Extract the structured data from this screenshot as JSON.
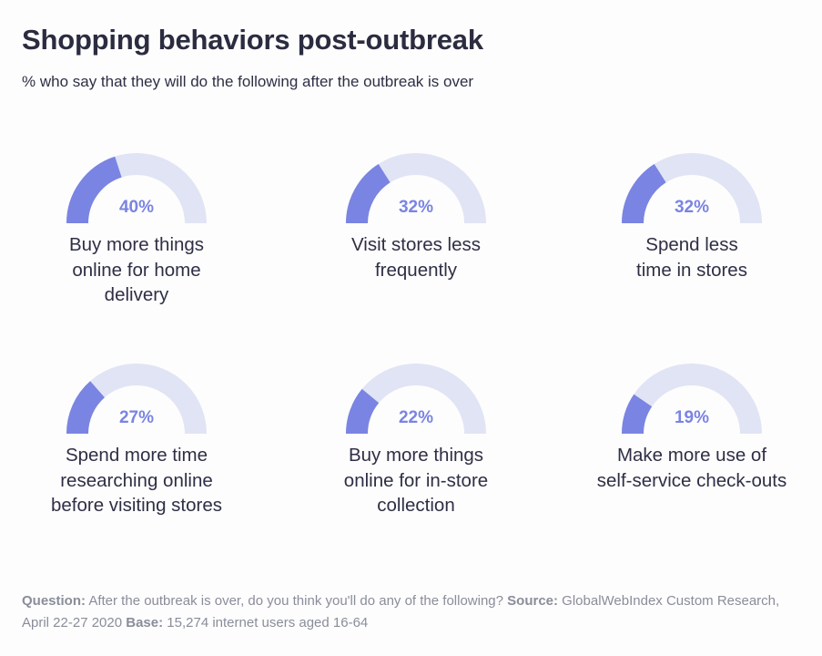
{
  "header": {
    "title": "Shopping behaviors post-outbreak",
    "subtitle": "% who say that they will do the following after the outbreak is over"
  },
  "colors": {
    "fill": "#7a84e2",
    "track": "#e1e4f4",
    "value_text": "#7a84e2",
    "title": "#2b2c40",
    "footer": "#8a8d9a"
  },
  "chart_data": {
    "type": "gauge",
    "unit": "%",
    "max": 100,
    "items": [
      {
        "value": 40,
        "value_label": "40%",
        "label_lines": [
          "Buy more things",
          "online for home",
          "delivery"
        ]
      },
      {
        "value": 32,
        "value_label": "32%",
        "label_lines": [
          "Visit stores less",
          "frequently"
        ]
      },
      {
        "value": 32,
        "value_label": "32%",
        "label_lines": [
          "Spend less",
          "time in stores"
        ]
      },
      {
        "value": 27,
        "value_label": "27%",
        "label_lines": [
          "Spend more time",
          "researching online",
          "before visiting stores"
        ]
      },
      {
        "value": 22,
        "value_label": "22%",
        "label_lines": [
          "Buy more things",
          "online for in-store",
          "collection"
        ]
      },
      {
        "value": 19,
        "value_label": "19%",
        "label_lines": [
          "Make more use of",
          "self-service check-outs"
        ]
      }
    ]
  },
  "footer": {
    "question_label": "Question:",
    "question_text": " After the outbreak is over, do you think you'll do any of the following? ",
    "source_label": "Source:",
    "source_text": " GlobalWebIndex Custom Research, April 22-27 2020 ",
    "base_label": "Base:",
    "base_text": " 15,274 internet users aged 16-64"
  }
}
